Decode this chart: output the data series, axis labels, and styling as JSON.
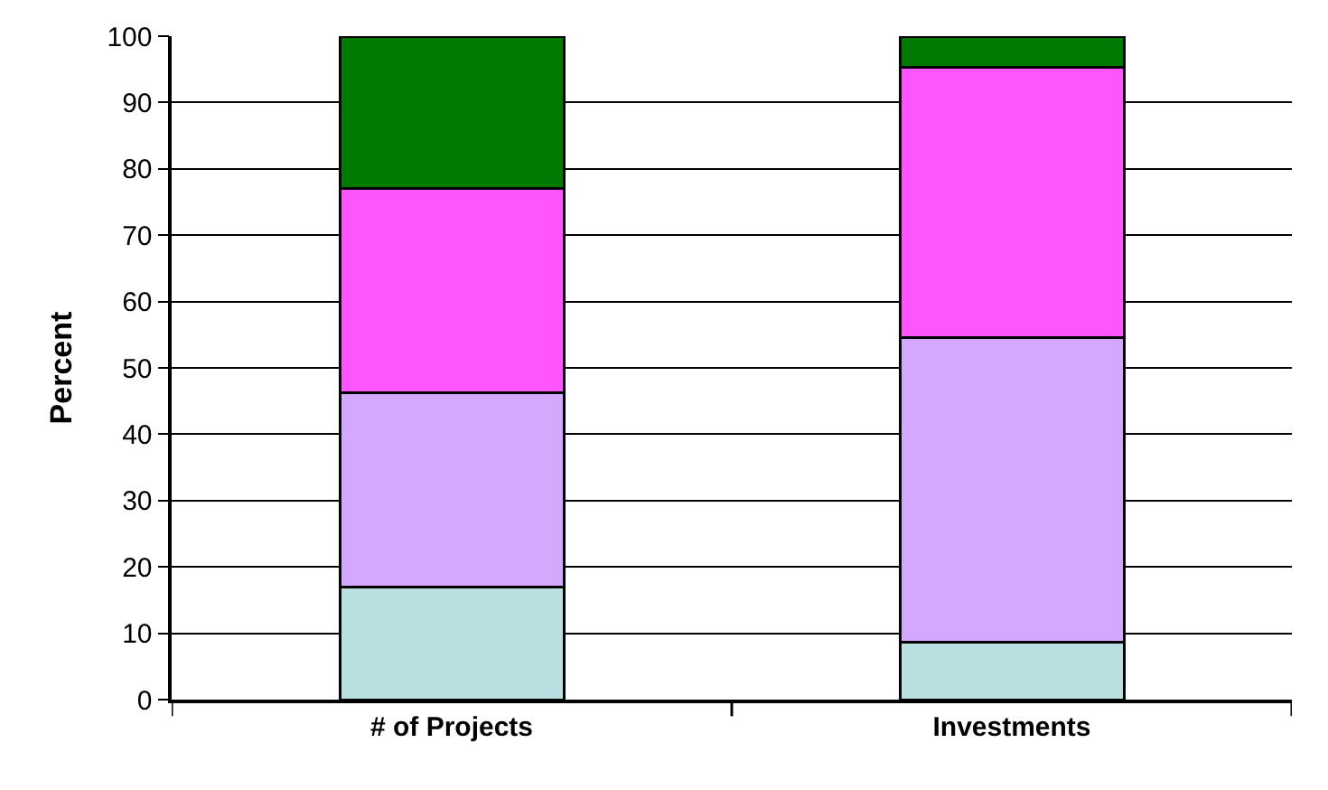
{
  "chart_data": {
    "type": "bar",
    "stacked": true,
    "ylabel": "Percent",
    "categories": [
      "# of Projects",
      "Investments"
    ],
    "series": [
      {
        "color": "#b9dfe0",
        "values": [
          16.9,
          8.7
        ]
      },
      {
        "color": "#d4a8ff",
        "values": [
          29.4,
          45.9
        ]
      },
      {
        "color": "#ff55ff",
        "values": [
          30.8,
          40.7
        ]
      },
      {
        "color": "#007a00",
        "values": [
          22.9,
          4.7
        ]
      }
    ],
    "ylim": [
      0,
      100
    ],
    "yticks": [
      0,
      10,
      20,
      30,
      40,
      50,
      60,
      70,
      80,
      90,
      100
    ],
    "grid": "y"
  }
}
